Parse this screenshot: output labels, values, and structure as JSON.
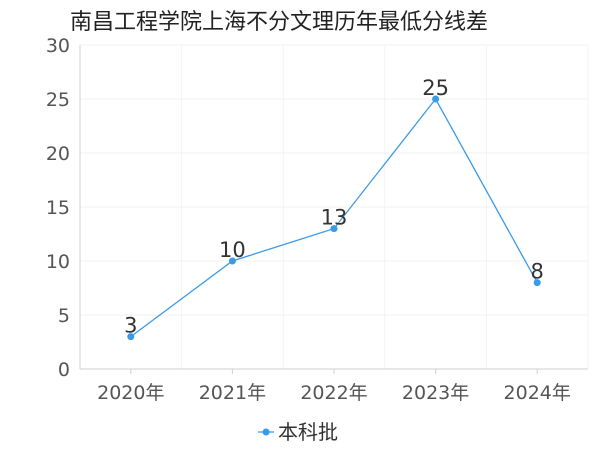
{
  "chart_data": {
    "type": "line",
    "title": "南昌工程学院上海不分文理历年最低分线差",
    "categories": [
      "2020年",
      "2021年",
      "2022年",
      "2023年",
      "2024年"
    ],
    "series": [
      {
        "name": "本科批",
        "values": [
          3,
          10,
          13,
          25,
          8
        ],
        "color": "#3a9be8"
      }
    ],
    "ylim": [
      0,
      30
    ],
    "yticks": [
      0,
      5,
      10,
      15,
      20,
      25,
      30
    ],
    "xlabel": "",
    "ylabel": "",
    "grid": true,
    "legend": "bottom-center"
  }
}
